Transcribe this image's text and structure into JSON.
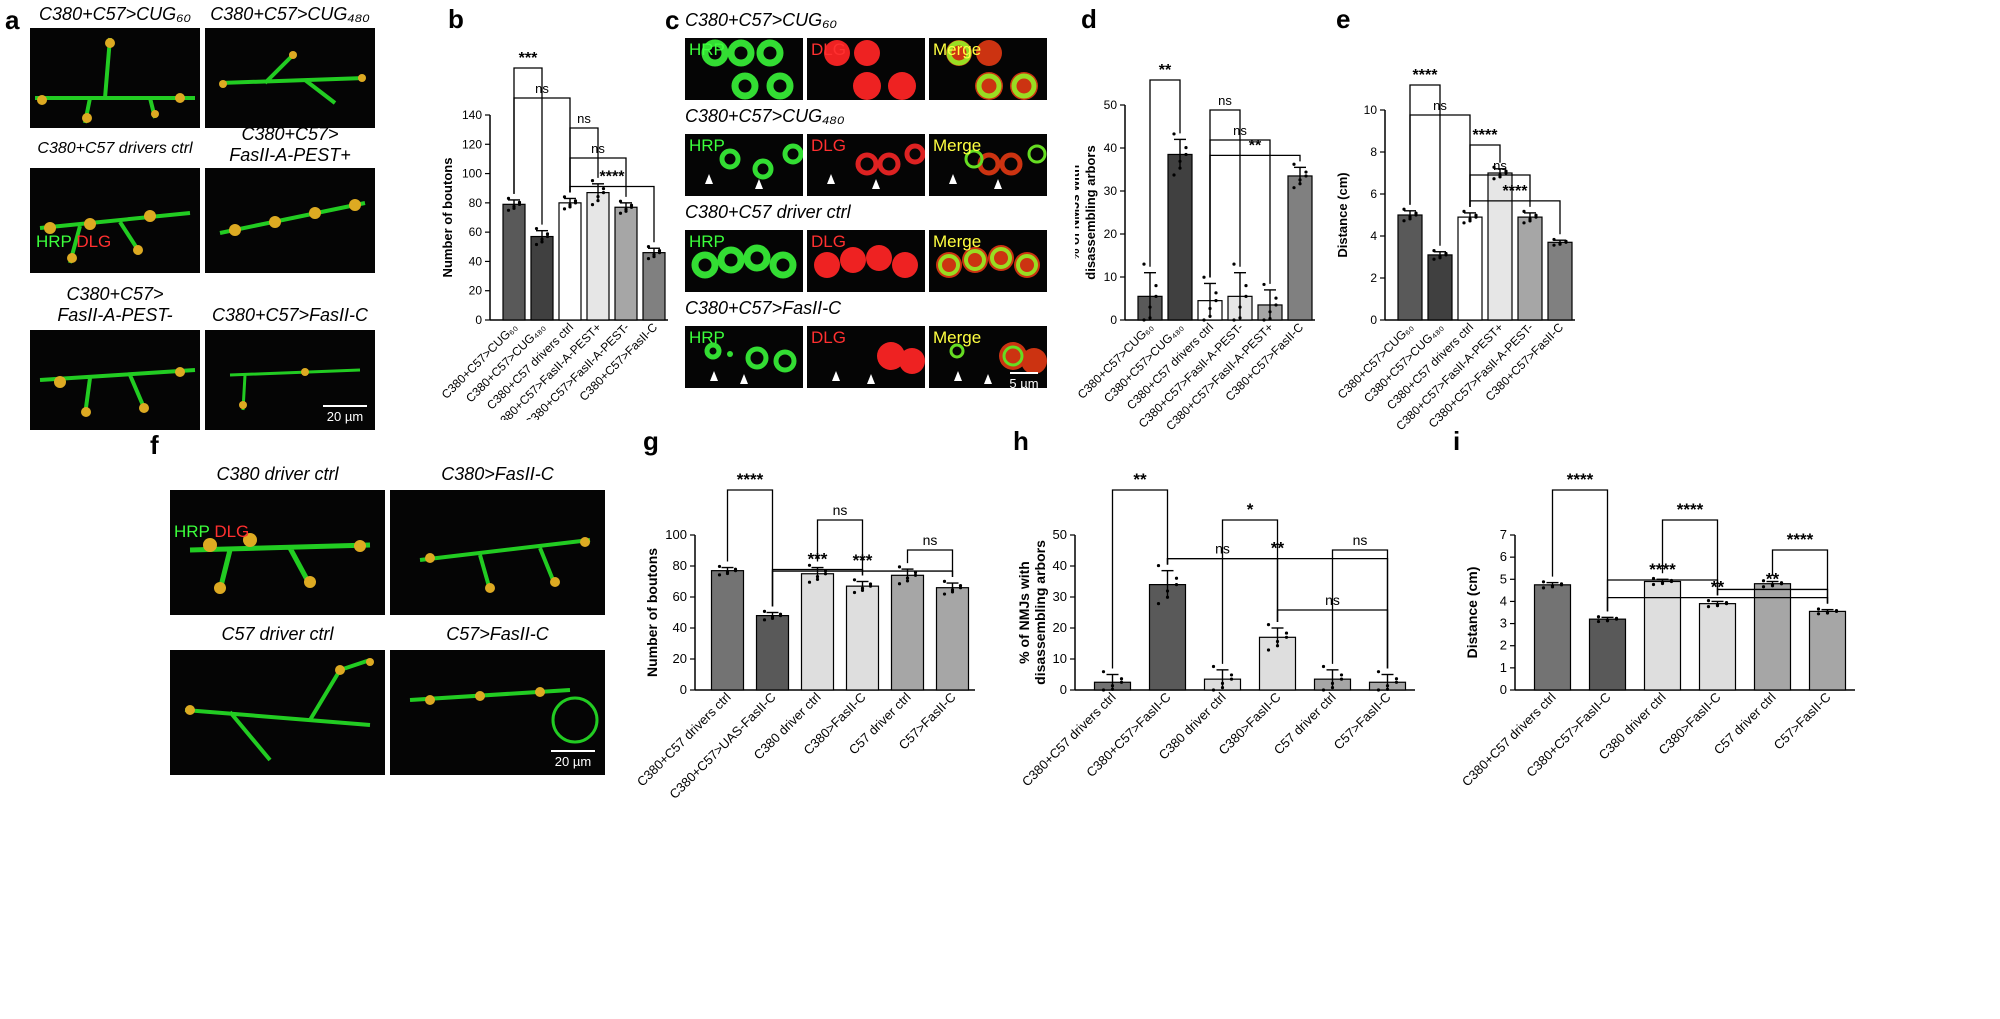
{
  "panels": {
    "a": {
      "label": "a",
      "captions": [
        "C380+C57>CUG₆₀",
        "C380+C57>CUG₄₈₀",
        "C380+C57 drivers ctrl",
        "C380+C57>",
        "FasII-A-PEST+",
        "C380+C57>",
        "FasII-A-PEST-",
        "C380+C57>FasII-C"
      ],
      "stain_green": "HRP",
      "stain_red": "DLG",
      "scale": "20 µm"
    },
    "c": {
      "label": "c",
      "captions": [
        "C380+C57>CUG₆₀",
        "C380+C57>CUG₄₈₀",
        "C380+C57 driver ctrl",
        "C380+C57>FasII-C"
      ],
      "channels": [
        "HRP",
        "DLG",
        "Merge"
      ],
      "scale": "5 µm"
    },
    "f": {
      "label": "f",
      "captions": [
        "C380 driver ctrl",
        "C380>FasII-C",
        "C57 driver ctrl",
        "C57>FasII-C"
      ],
      "stain_green": "HRP",
      "stain_red": "DLG",
      "scale": "20 µm"
    }
  },
  "chart_data": [
    {
      "panel": "b",
      "type": "bar",
      "ylabel": "Number of boutons",
      "ylim": [
        0,
        140
      ],
      "yticks": [
        0,
        20,
        40,
        60,
        80,
        100,
        120,
        140
      ],
      "categories": [
        "C380+C57>CUG₆₀",
        "C380+C57>CUG₄₈₀",
        "C380+C57 drivers ctrl",
        "C380+C57>FasII-A-PEST+",
        "C380+C57>FasII-A-PEST-",
        "C380+C57>FasII-C"
      ],
      "values": [
        79,
        57,
        80,
        87,
        77,
        46
      ],
      "errors": [
        3,
        4,
        3,
        6,
        3,
        3
      ],
      "colors": [
        "#595959",
        "#404040",
        "#ffffff",
        "#e6e6e6",
        "#a6a6a6",
        "#808080"
      ],
      "brackets": [
        {
          "from": 0,
          "to": 1,
          "label": "***"
        },
        {
          "from": 0,
          "to": 2,
          "label": "ns"
        },
        {
          "from": 2,
          "to": 3,
          "label": "ns"
        },
        {
          "from": 2,
          "to": 4,
          "label": "ns"
        },
        {
          "from": 2,
          "to": 5,
          "label": "****"
        }
      ]
    },
    {
      "panel": "d",
      "type": "bar",
      "ylabel": "% of NMJs with\ndisassembling arbors",
      "ylim": [
        0,
        50
      ],
      "yticks": [
        0,
        10,
        20,
        30,
        40,
        50
      ],
      "categories": [
        "C380+C57>CUG₆₀",
        "C380+C57>CUG₄₈₀",
        "C380+C57 drivers ctrl",
        "C380+C57>FasII-A-PEST-",
        "C380+C57>FasII-A-PEST+",
        "C380+C57>FasII-C"
      ],
      "values": [
        5.5,
        38.5,
        4.5,
        5.5,
        3.5,
        33.5
      ],
      "errors": [
        5.5,
        3.5,
        4,
        5.5,
        3.5,
        2
      ],
      "colors": [
        "#595959",
        "#404040",
        "#ffffff",
        "#e6e6e6",
        "#a6a6a6",
        "#808080"
      ],
      "brackets": [
        {
          "from": 0,
          "to": 1,
          "label": "**"
        },
        {
          "from": 2,
          "to": 3,
          "label": "ns"
        },
        {
          "from": 2,
          "to": 4,
          "label": "ns"
        },
        {
          "from": 2,
          "to": 5,
          "label": "**"
        }
      ]
    },
    {
      "panel": "e",
      "type": "bar",
      "ylabel": "Distance (cm)",
      "ylim": [
        0,
        10
      ],
      "yticks": [
        0,
        2,
        4,
        6,
        8,
        10
      ],
      "categories": [
        "C380+C57>CUG₆₀",
        "C380+C57>CUG₄₈₀",
        "C380+C57 drivers ctrl",
        "C380+C57>FasII-A-PEST+",
        "C380+C57>FasII-A-PEST-",
        "C380+C57>FasII-C"
      ],
      "values": [
        5.0,
        3.1,
        4.9,
        7.0,
        4.9,
        3.7
      ],
      "errors": [
        0.2,
        0.15,
        0.2,
        0.2,
        0.2,
        0.1
      ],
      "colors": [
        "#595959",
        "#404040",
        "#ffffff",
        "#e6e6e6",
        "#a6a6a6",
        "#808080"
      ],
      "brackets": [
        {
          "from": 0,
          "to": 1,
          "label": "****"
        },
        {
          "from": 0,
          "to": 2,
          "label": "ns"
        },
        {
          "from": 2,
          "to": 3,
          "label": "****"
        },
        {
          "from": 2,
          "to": 4,
          "label": "ns"
        },
        {
          "from": 2,
          "to": 5,
          "label": "****"
        }
      ]
    },
    {
      "panel": "g",
      "type": "bar",
      "ylabel": "Number of boutons",
      "ylim": [
        0,
        100
      ],
      "yticks": [
        0,
        20,
        40,
        60,
        80,
        100
      ],
      "categories": [
        "C380+C57 drivers ctrl",
        "C380+C57>UAS-FasII-C",
        "C380 driver ctrl",
        "C380>FasII-C",
        "C57 driver ctrl",
        "C57>FasII-C"
      ],
      "values": [
        77,
        48,
        75,
        67,
        74,
        66
      ],
      "errors": [
        2,
        2,
        4,
        3,
        4,
        3
      ],
      "colors": [
        "#737373",
        "#595959",
        "#dedede",
        "#dedede",
        "#a6a6a6",
        "#a6a6a6"
      ],
      "brackets": [
        {
          "from": 0,
          "to": 1,
          "label": "****"
        },
        {
          "from": 2,
          "to": 3,
          "label": "ns"
        },
        {
          "from": 4,
          "to": 5,
          "label": "ns"
        },
        {
          "from": 1,
          "to": 3,
          "label": "***"
        },
        {
          "from": 1,
          "to": 5,
          "label": "***"
        }
      ]
    },
    {
      "panel": "h",
      "type": "bar",
      "ylabel": "% of NMJs with\ndisassembling arbors",
      "ylim": [
        0,
        50
      ],
      "yticks": [
        0,
        10,
        20,
        30,
        40,
        50
      ],
      "categories": [
        "C380+C57 drivers ctrl",
        "C380+C57>FasII-C",
        "C380 driver ctrl",
        "C380>FasII-C",
        "C57 driver ctrl",
        "C57>FasII-C"
      ],
      "values": [
        2.5,
        34,
        3.5,
        17,
        3.5,
        2.5
      ],
      "errors": [
        2.5,
        4.5,
        3,
        3,
        3,
        2.5
      ],
      "colors": [
        "#737373",
        "#595959",
        "#dedede",
        "#dedede",
        "#a6a6a6",
        "#a6a6a6"
      ],
      "brackets": [
        {
          "from": 0,
          "to": 1,
          "label": "**"
        },
        {
          "from": 2,
          "to": 3,
          "label": "*"
        },
        {
          "from": 4,
          "to": 5,
          "label": "ns"
        },
        {
          "from": 1,
          "to": 3,
          "label": "ns"
        },
        {
          "from": 3,
          "to": 5,
          "label": "ns"
        },
        {
          "from": 1,
          "to": 5,
          "label": "**"
        }
      ]
    },
    {
      "panel": "i",
      "type": "bar",
      "ylabel": "Distance (cm)",
      "ylim": [
        0,
        7
      ],
      "yticks": [
        0,
        1,
        2,
        3,
        4,
        5,
        6,
        7
      ],
      "categories": [
        "C380+C57 drivers ctrl",
        "C380+C57>FasII-C",
        "C380 driver ctrl",
        "C380>FasII-C",
        "C57 driver ctrl",
        "C57>FasII-C"
      ],
      "values": [
        4.75,
        3.2,
        4.9,
        3.9,
        4.8,
        3.55
      ],
      "errors": [
        0.1,
        0.08,
        0.1,
        0.1,
        0.1,
        0.08
      ],
      "colors": [
        "#737373",
        "#595959",
        "#dedede",
        "#dedede",
        "#a6a6a6",
        "#a6a6a6"
      ],
      "brackets": [
        {
          "from": 0,
          "to": 1,
          "label": "****"
        },
        {
          "from": 2,
          "to": 3,
          "label": "****"
        },
        {
          "from": 4,
          "to": 5,
          "label": "****"
        },
        {
          "from": 1,
          "to": 3,
          "label": "****"
        },
        {
          "from": 3,
          "to": 5,
          "label": "**"
        },
        {
          "from": 1,
          "to": 5,
          "label": "**"
        }
      ]
    }
  ]
}
